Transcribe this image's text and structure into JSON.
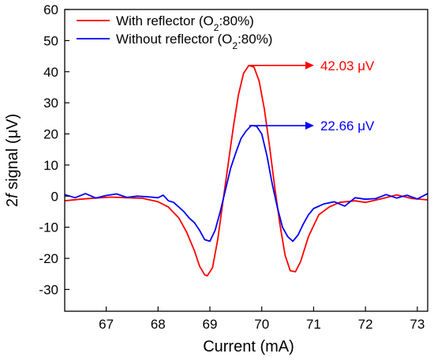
{
  "chart_data": {
    "type": "line",
    "xlabel": "Current (mA)",
    "ylabel": "2f signal (μV)",
    "ylabel_parts": {
      "pre": "2",
      "italic": "f",
      "post": " signal (μV)"
    },
    "xlim": [
      66.2,
      73.2
    ],
    "ylim": [
      -37,
      60
    ],
    "xticks": [
      67,
      68,
      69,
      70,
      71,
      72,
      73
    ],
    "yticks": [
      -30,
      -20,
      -10,
      0,
      10,
      20,
      30,
      40,
      50,
      60
    ],
    "grid": false,
    "legend": {
      "placement": "top-left",
      "entries": [
        {
          "pre": "With reflector (O",
          "sub": "2",
          "post": ":80%)",
          "color": "#ff0000"
        },
        {
          "pre": "Without  reflector (O",
          "sub": "2",
          "post": ":80%)",
          "color": "#0000ff"
        }
      ]
    },
    "series": [
      {
        "name": "With reflector (O2:80%)",
        "color": "#ff0000",
        "x": [
          66.2,
          66.5,
          66.8,
          67.1,
          67.4,
          67.7,
          68.0,
          68.2,
          68.4,
          68.55,
          68.7,
          68.8,
          68.9,
          68.95,
          69.05,
          69.15,
          69.25,
          69.35,
          69.45,
          69.55,
          69.65,
          69.75,
          69.85,
          69.95,
          70.05,
          70.15,
          70.25,
          70.35,
          70.45,
          70.55,
          70.65,
          70.75,
          70.9,
          71.1,
          71.3,
          71.5,
          71.8,
          72.0,
          72.3,
          72.6,
          72.9,
          73.2
        ],
        "y": [
          -1.5,
          -1.0,
          -0.6,
          -0.3,
          -0.5,
          -0.7,
          -1.8,
          -3.5,
          -7.0,
          -11.5,
          -17.5,
          -22.5,
          -25.3,
          -25.6,
          -23.0,
          -14.0,
          -2.0,
          10.0,
          22.0,
          32.5,
          39.5,
          42.0,
          41.5,
          37.0,
          28.0,
          16.0,
          3.0,
          -9.0,
          -19.0,
          -24.0,
          -24.3,
          -21.0,
          -13.0,
          -6.0,
          -3.5,
          -2.0,
          -1.5,
          -2.0,
          -0.9,
          0.4,
          -0.8,
          -1.2
        ]
      },
      {
        "name": "Without  reflector (O2:80%)",
        "color": "#0000ff",
        "x": [
          66.2,
          66.4,
          66.6,
          66.8,
          67.0,
          67.2,
          67.4,
          67.6,
          67.8,
          68.0,
          68.1,
          68.2,
          68.3,
          68.4,
          68.5,
          68.6,
          68.7,
          68.8,
          68.9,
          69.0,
          69.1,
          69.2,
          69.3,
          69.4,
          69.5,
          69.6,
          69.7,
          69.8,
          69.9,
          70.0,
          70.1,
          70.2,
          70.3,
          70.4,
          70.5,
          70.6,
          70.7,
          70.8,
          70.9,
          71.0,
          71.2,
          71.4,
          71.6,
          71.8,
          72.0,
          72.2,
          72.4,
          72.6,
          72.8,
          73.0,
          73.2
        ],
        "y": [
          0.5,
          -0.5,
          0.8,
          -0.6,
          0.2,
          0.7,
          -0.4,
          0.0,
          -0.2,
          -0.5,
          0.3,
          -1.5,
          -2.0,
          -3.5,
          -5.0,
          -7.0,
          -8.5,
          -11.0,
          -14.0,
          -14.5,
          -11.0,
          -5.0,
          2.0,
          9.0,
          14.0,
          18.5,
          21.0,
          22.7,
          22.5,
          20.0,
          13.0,
          4.0,
          -3.5,
          -10.0,
          -13.0,
          -14.5,
          -12.5,
          -9.0,
          -6.0,
          -4.0,
          -2.5,
          -1.8,
          -3.2,
          -0.5,
          -1.0,
          -0.8,
          0.5,
          -0.6,
          0.3,
          -0.9,
          0.8
        ]
      }
    ],
    "annotations": [
      {
        "text": "42.03 μV",
        "color": "#ff0000",
        "x": 69.76,
        "y": 42.03
      },
      {
        "text": "22.66 μV",
        "color": "#0000ff",
        "x": 69.76,
        "y": 22.66
      }
    ]
  }
}
